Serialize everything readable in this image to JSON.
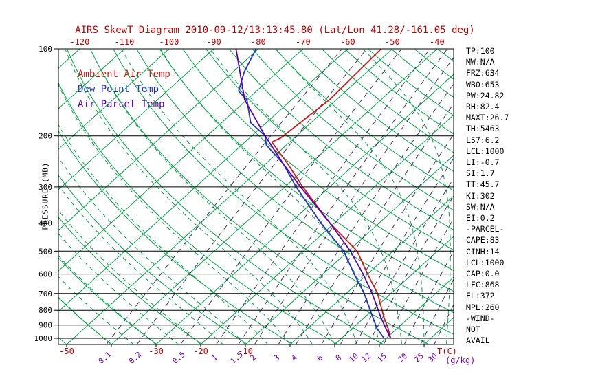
{
  "title": "AIRS SkewT Diagram 2010-09-12/13:13:45.80 (Lat/Lon 41.28/-161.05 deg)",
  "colors": {
    "title": "#c00000",
    "temp_axis": "#cc0000",
    "grid_green": "#00a546",
    "mixing_line": "#3d2f66",
    "mixing_label": "#7700bb",
    "axis_black": "#000000",
    "ambient": "#cc1a1a",
    "dewpoint": "#2233cc",
    "parcel": "#5c00b0"
  },
  "legend": {
    "items": [
      {
        "label": "Ambient Air Temp",
        "color": "#cc1a1a"
      },
      {
        "label": "Dew Point Temp",
        "color": "#2233cc"
      },
      {
        "label": "Air Parcel Temp",
        "color": "#5c00b0"
      }
    ]
  },
  "axes": {
    "pressure_label": "PRESSURE (MB)",
    "pressure_ticks": [
      100,
      200,
      300,
      400,
      500,
      600,
      700,
      800,
      900,
      1000
    ],
    "top_temp_ticks": [
      -120,
      -110,
      -100,
      -90,
      -80,
      -70,
      -60,
      -50,
      -40
    ],
    "bottom_temp_ticks": [
      -50,
      -30,
      -20,
      -10
    ],
    "temp_unit": "T(C)",
    "mixing_unit": "(g/kg)",
    "mixing_ratio_ticks": [
      "0.1",
      "0.2",
      "0.5",
      "1",
      "1.5",
      "2",
      "3",
      "4",
      "6",
      "8",
      "10",
      "12",
      "15",
      "20",
      "25",
      "30"
    ]
  },
  "stats_panel": {
    "lines": [
      "TP:100",
      "MW:N/A",
      "FRZ:634",
      "WB0:653",
      "PW:24.82",
      "RH:82.4",
      "MAXT:26.7",
      "TH:5463",
      "L57:6.2",
      "LCL:1000",
      "LI:-0.7",
      "SI:1.7",
      "TT:45.7",
      "KI:302",
      "SW:N/A",
      "EI:0.2",
      "-PARCEL-",
      "CAPE:83",
      "CINH:14",
      "LCL:1000",
      "CAP:0.0",
      "LFC:868",
      "EL:372",
      "MPL:260",
      "-WIND-",
      "NOT",
      "AVAIL"
    ]
  },
  "chart_data": {
    "type": "line",
    "title": "AIRS SkewT Diagram 2010-09-12/13:13:45.80 (Lat/Lon 41.28/-161.05 deg)",
    "y_axis": {
      "label": "PRESSURE (MB)",
      "scale": "log",
      "range_mb": [
        100,
        1050
      ],
      "ticks": [
        100,
        200,
        300,
        400,
        500,
        600,
        700,
        800,
        900,
        1000
      ]
    },
    "x_axis": {
      "label": "T(C)",
      "skewed": true,
      "top_ticks_c": [
        -120,
        -110,
        -100,
        -90,
        -80,
        -70,
        -60,
        -50,
        -40
      ],
      "bottom_ticks_c": [
        -50,
        -30,
        -20,
        -10
      ]
    },
    "mixing_ratio_lines_gkg": [
      0.1,
      0.2,
      0.5,
      1,
      1.5,
      2,
      3,
      4,
      6,
      8,
      10,
      12,
      15,
      20,
      25,
      30
    ],
    "grid": {
      "isotherms_c": {
        "from": -160,
        "to": 40,
        "step": 10
      },
      "dry_adiabats_k": {
        "from": 220,
        "to": 450,
        "step": 10
      },
      "moist_adiabats_surface_c": {
        "from": -40,
        "to": 40,
        "step": 5
      }
    },
    "series": [
      {
        "name": "Ambient Air Temp",
        "color": "#cc1a1a",
        "points_mb_c": [
          [
            1000,
            21
          ],
          [
            925,
            18
          ],
          [
            850,
            14.5
          ],
          [
            700,
            7
          ],
          [
            600,
            0
          ],
          [
            500,
            -8
          ],
          [
            400,
            -21
          ],
          [
            300,
            -36
          ],
          [
            250,
            -45
          ],
          [
            210,
            -54
          ],
          [
            203,
            -53
          ],
          [
            150,
            -51.5
          ],
          [
            100,
            -52.5
          ]
        ]
      },
      {
        "name": "Dew Point Temp",
        "color": "#2233cc",
        "points_mb_c": [
          [
            1000,
            19.5
          ],
          [
            925,
            15.5
          ],
          [
            850,
            12
          ],
          [
            700,
            4
          ],
          [
            600,
            -3
          ],
          [
            500,
            -11
          ],
          [
            400,
            -23
          ],
          [
            300,
            -37.5
          ],
          [
            250,
            -46
          ],
          [
            215,
            -54.5
          ],
          [
            200,
            -57
          ],
          [
            180,
            -63.5
          ],
          [
            150,
            -70
          ],
          [
            140,
            -74
          ],
          [
            120,
            -77.5
          ],
          [
            100,
            -80.5
          ]
        ]
      },
      {
        "name": "Air Parcel Temp",
        "color": "#5c00b0",
        "points_mb_c": [
          [
            1000,
            21
          ],
          [
            925,
            17.5
          ],
          [
            850,
            13.8
          ],
          [
            700,
            5.8
          ],
          [
            600,
            -1
          ],
          [
            500,
            -9.5
          ],
          [
            400,
            -21
          ],
          [
            300,
            -36.5
          ],
          [
            250,
            -46
          ],
          [
            200,
            -57
          ],
          [
            150,
            -70.5
          ],
          [
            100,
            -85
          ]
        ]
      }
    ]
  }
}
